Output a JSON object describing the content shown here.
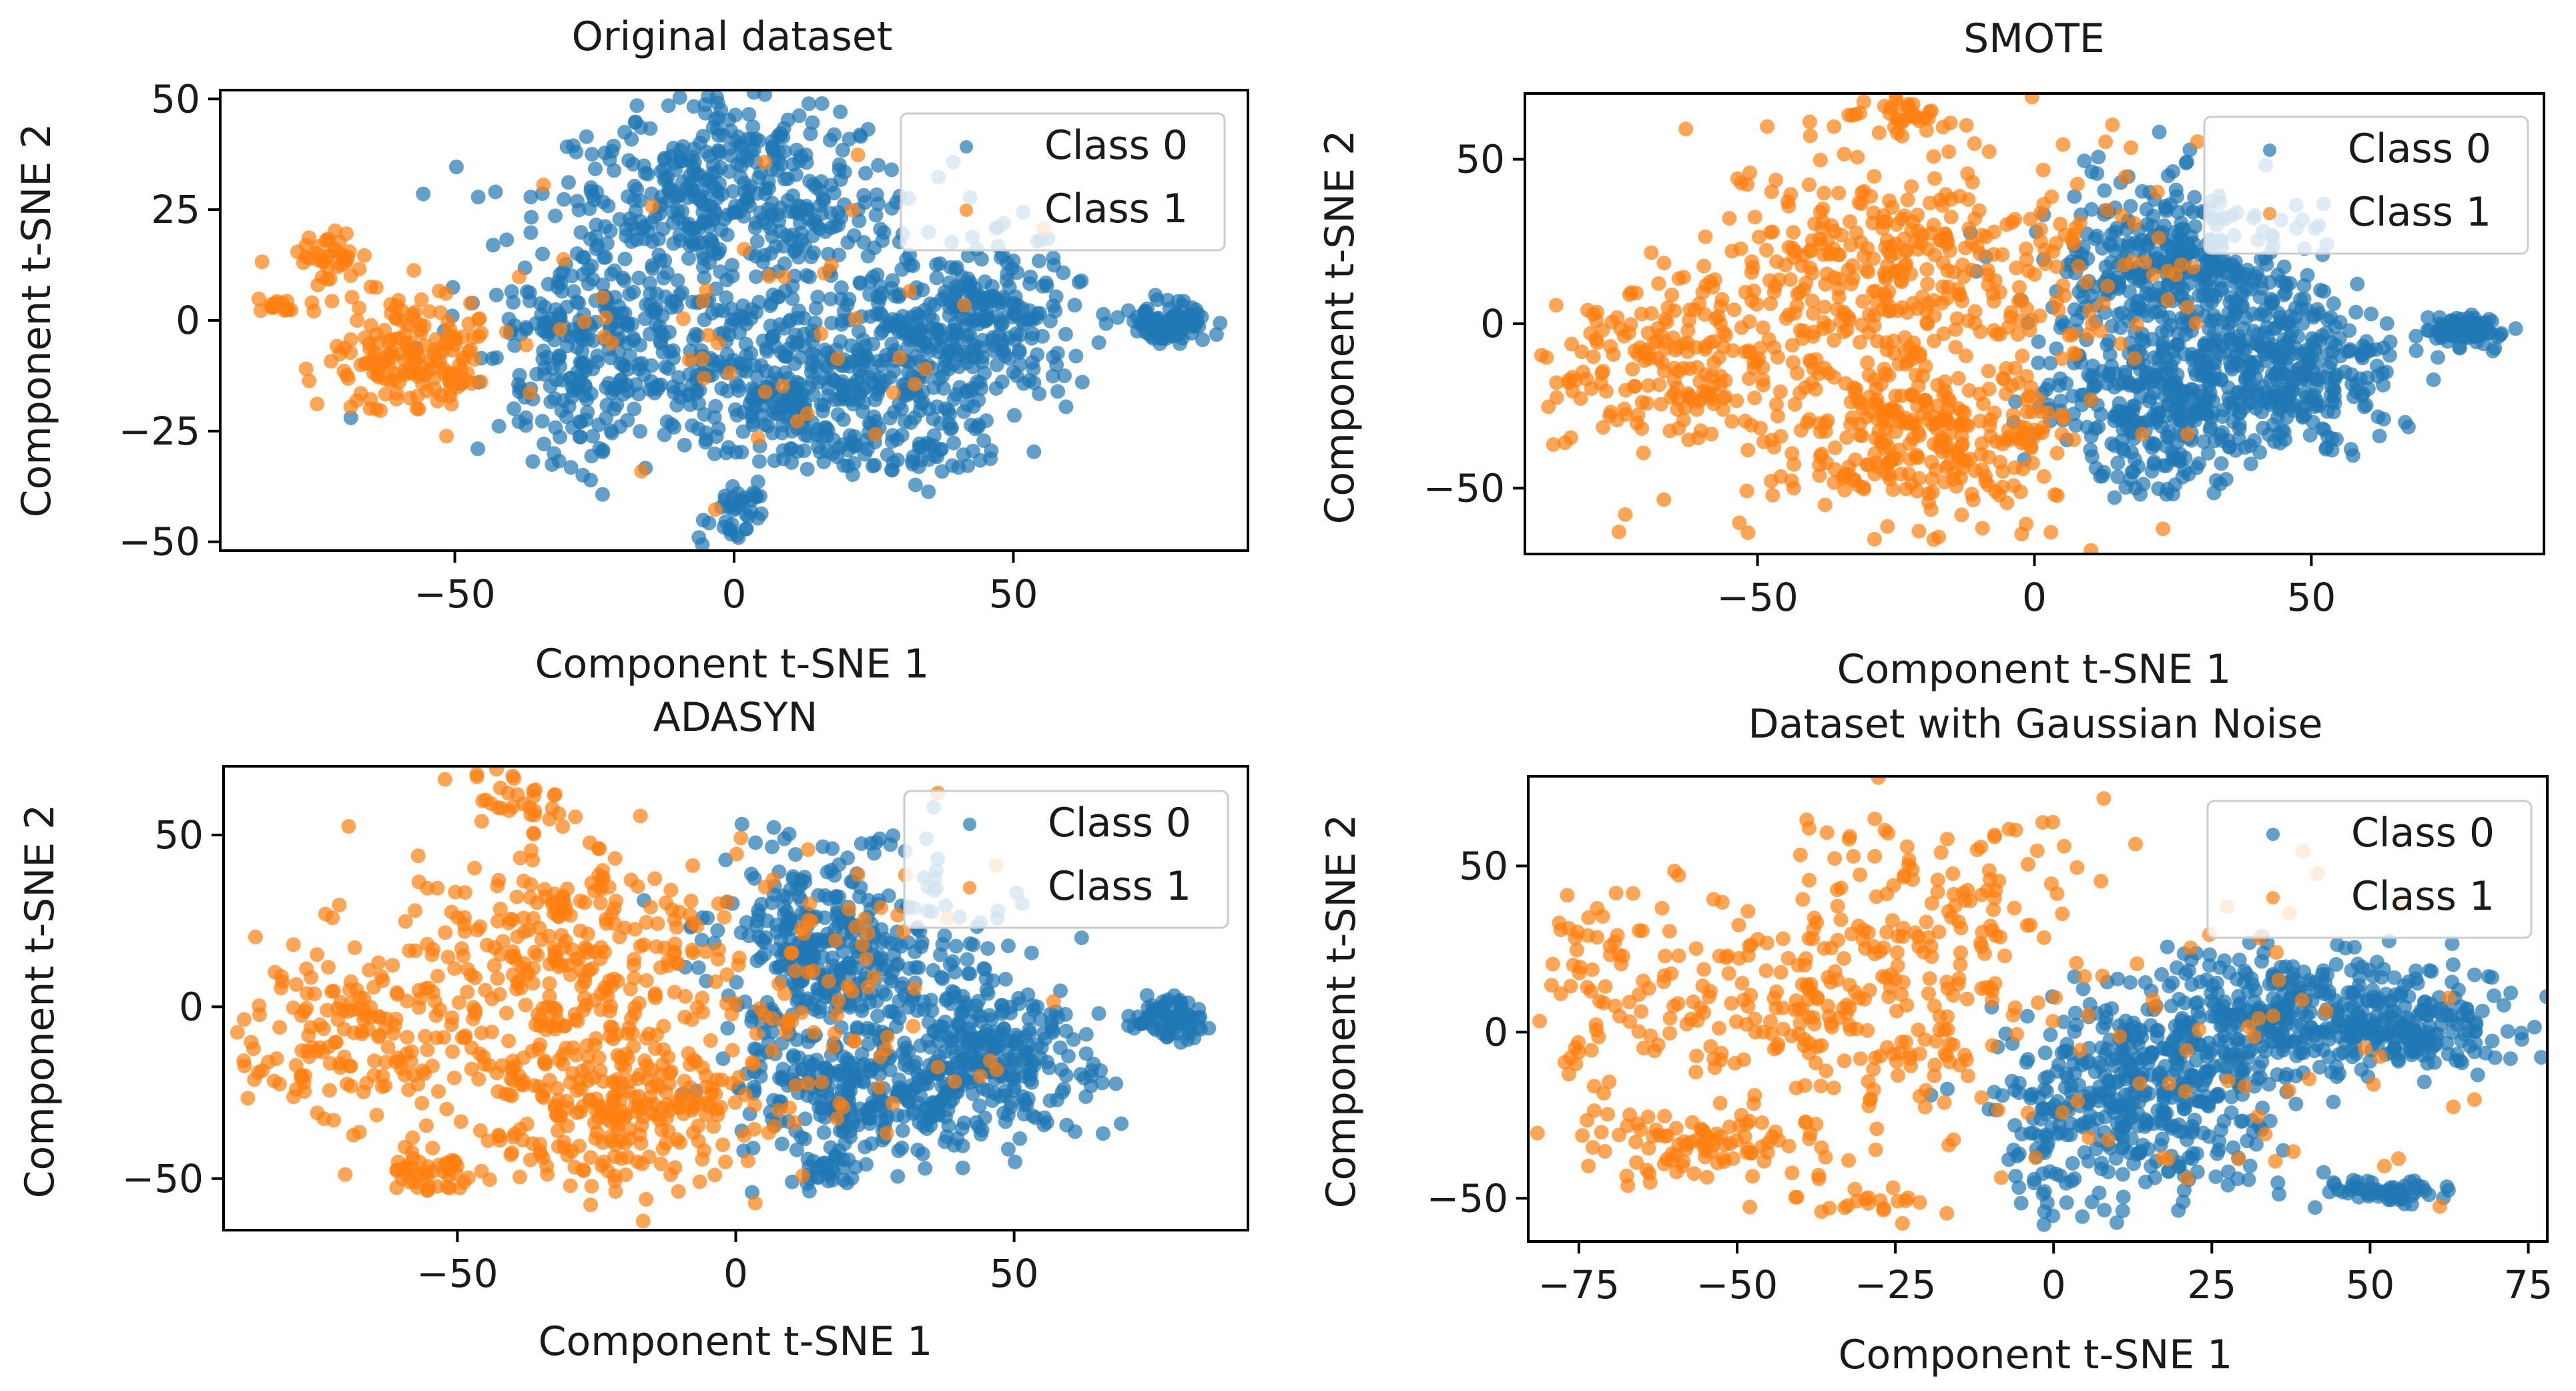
{
  "colors": {
    "class0": "#1f77b4",
    "class1": "#ff7f0e"
  },
  "chart_data": [
    {
      "type": "scatter",
      "title": "Original dataset",
      "xlabel": "Component t-SNE 1",
      "ylabel": "Component t-SNE 2",
      "xlim": [
        -92,
        92
      ],
      "ylim": [
        -52,
        52
      ],
      "xticks": [
        -50,
        0,
        50
      ],
      "yticks": [
        -50,
        -25,
        0,
        25,
        50
      ],
      "legend": {
        "placement": "top-right",
        "entries": [
          "Class 0",
          "Class 1"
        ]
      },
      "series": [
        {
          "name": "Class 0",
          "color": "#1f77b4",
          "clusters": [
            {
              "cx": 0,
              "cy": 28,
              "sx": 15,
              "sy": 11,
              "n": 420
            },
            {
              "cx": -25,
              "cy": -5,
              "sx": 12,
              "sy": 14,
              "n": 320
            },
            {
              "cx": 25,
              "cy": -10,
              "sx": 13,
              "sy": 10,
              "n": 320
            },
            {
              "cx": 45,
              "cy": 2,
              "sx": 8,
              "sy": 9,
              "n": 200
            },
            {
              "cx": 5,
              "cy": -15,
              "sx": 10,
              "sy": 8,
              "n": 180
            },
            {
              "cx": 0,
              "cy": -43,
              "sx": 3,
              "sy": 3,
              "n": 40
            },
            {
              "cx": 78,
              "cy": -1,
              "sx": 4,
              "sy": 2.5,
              "n": 90
            },
            {
              "cx": 28,
              "cy": -30,
              "sx": 10,
              "sy": 4,
              "n": 60
            }
          ]
        },
        {
          "name": "Class 1",
          "color": "#ff7f0e",
          "clusters": [
            {
              "cx": -58,
              "cy": -8,
              "sx": 8,
              "sy": 7,
              "n": 170
            },
            {
              "cx": -72,
              "cy": 14,
              "sx": 3,
              "sy": 3,
              "n": 40
            },
            {
              "cx": -82,
              "cy": 3,
              "sx": 2,
              "sy": 1,
              "n": 15
            },
            {
              "cx": 0,
              "cy": 0,
              "sx": 28,
              "sy": 18,
              "n": 50
            }
          ]
        }
      ]
    },
    {
      "type": "scatter",
      "title": "SMOTE",
      "xlabel": "Component t-SNE 1",
      "ylabel": "Component t-SNE 2",
      "xlim": [
        -92,
        92
      ],
      "ylim": [
        -70,
        70
      ],
      "xticks": [
        -50,
        0,
        50
      ],
      "yticks": [
        -50,
        0,
        50
      ],
      "legend": {
        "placement": "top-right",
        "entries": [
          "Class 0",
          "Class 1"
        ]
      },
      "series": [
        {
          "name": "Class 0",
          "color": "#1f77b4",
          "clusters": [
            {
              "cx": 25,
              "cy": 15,
              "sx": 12,
              "sy": 15,
              "n": 420
            },
            {
              "cx": 45,
              "cy": -15,
              "sx": 10,
              "sy": 12,
              "n": 320
            },
            {
              "cx": 20,
              "cy": -25,
              "sx": 10,
              "sy": 10,
              "n": 220
            },
            {
              "cx": 78,
              "cy": -2,
              "sx": 3.5,
              "sy": 2.5,
              "n": 80
            },
            {
              "cx": 25,
              "cy": -45,
              "sx": 6,
              "sy": 5,
              "n": 40
            }
          ]
        },
        {
          "name": "Class 1",
          "color": "#ff7f0e",
          "clusters": [
            {
              "cx": -30,
              "cy": 15,
              "sx": 16,
              "sy": 18,
              "n": 320
            },
            {
              "cx": -20,
              "cy": -35,
              "sx": 15,
              "sy": 12,
              "n": 300
            },
            {
              "cx": -65,
              "cy": -15,
              "sx": 12,
              "sy": 12,
              "n": 180
            },
            {
              "cx": -25,
              "cy": 63,
              "sx": 6,
              "sy": 3,
              "n": 40
            },
            {
              "cx": 5,
              "cy": 15,
              "sx": 12,
              "sy": 20,
              "n": 90
            }
          ]
        }
      ]
    },
    {
      "type": "scatter",
      "title": "ADASYN",
      "xlabel": "Component t-SNE 1",
      "ylabel": "Component t-SNE 2",
      "xlim": [
        -92,
        92
      ],
      "ylim": [
        -65,
        70
      ],
      "xticks": [
        -50,
        0,
        50
      ],
      "yticks": [
        -50,
        0,
        50
      ],
      "legend": {
        "placement": "top-right",
        "entries": [
          "Class 0",
          "Class 1"
        ]
      },
      "series": [
        {
          "name": "Class 0",
          "color": "#1f77b4",
          "clusters": [
            {
              "cx": 20,
              "cy": 15,
              "sx": 12,
              "sy": 15,
              "n": 400
            },
            {
              "cx": 45,
              "cy": -15,
              "sx": 10,
              "sy": 12,
              "n": 300
            },
            {
              "cx": 20,
              "cy": -25,
              "sx": 10,
              "sy": 10,
              "n": 220
            },
            {
              "cx": 78,
              "cy": -3,
              "sx": 3.5,
              "sy": 3,
              "n": 80
            },
            {
              "cx": 17,
              "cy": -48,
              "sx": 3,
              "sy": 3,
              "n": 30
            }
          ]
        },
        {
          "name": "Class 1",
          "color": "#ff7f0e",
          "clusters": [
            {
              "cx": -30,
              "cy": 10,
              "sx": 16,
              "sy": 18,
              "n": 320
            },
            {
              "cx": -20,
              "cy": -30,
              "sx": 13,
              "sy": 12,
              "n": 260
            },
            {
              "cx": -70,
              "cy": -10,
              "sx": 10,
              "sy": 15,
              "n": 160
            },
            {
              "cx": -40,
              "cy": 60,
              "sx": 4,
              "sy": 4,
              "n": 30
            },
            {
              "cx": -55,
              "cy": -48,
              "sx": 4,
              "sy": 3,
              "n": 40
            },
            {
              "cx": 15,
              "cy": 10,
              "sx": 15,
              "sy": 22,
              "n": 80
            }
          ]
        }
      ]
    },
    {
      "type": "scatter",
      "title": "Dataset with Gaussian Noise",
      "xlabel": "Component t-SNE 1",
      "ylabel": "Component t-SNE 2",
      "xlim": [
        -83,
        78
      ],
      "ylim": [
        -63,
        77
      ],
      "xticks": [
        -75,
        -50,
        -25,
        0,
        25,
        50,
        75
      ],
      "yticks": [
        -50,
        0,
        50
      ],
      "legend": {
        "placement": "top-right",
        "entries": [
          "Class 0",
          "Class 1"
        ]
      },
      "series": [
        {
          "name": "Class 0",
          "color": "#1f77b4",
          "clusters": [
            {
              "cx": 40,
              "cy": 5,
              "sx": 15,
              "sy": 10,
              "n": 380
            },
            {
              "cx": 15,
              "cy": -20,
              "sx": 10,
              "sy": 15,
              "n": 380
            },
            {
              "cx": 58,
              "cy": 0,
              "sx": 6,
              "sy": 5,
              "n": 100
            },
            {
              "cx": 52,
              "cy": -48,
              "sx": 5,
              "sy": 2,
              "n": 60
            },
            {
              "cx": 0,
              "cy": -30,
              "sx": 5,
              "sy": 15,
              "n": 60
            }
          ]
        },
        {
          "name": "Class 1",
          "color": "#ff7f0e",
          "clusters": [
            {
              "cx": -35,
              "cy": 10,
              "sx": 17,
              "sy": 17,
              "n": 260
            },
            {
              "cx": -55,
              "cy": -35,
              "sx": 12,
              "sy": 5,
              "n": 100
            },
            {
              "cx": -20,
              "cy": 45,
              "sx": 15,
              "sy": 12,
              "n": 80
            },
            {
              "cx": -72,
              "cy": 15,
              "sx": 6,
              "sy": 15,
              "n": 60
            },
            {
              "cx": 25,
              "cy": 0,
              "sx": 25,
              "sy": 25,
              "n": 60
            },
            {
              "cx": -30,
              "cy": -52,
              "sx": 6,
              "sy": 2,
              "n": 20
            }
          ]
        }
      ]
    }
  ]
}
